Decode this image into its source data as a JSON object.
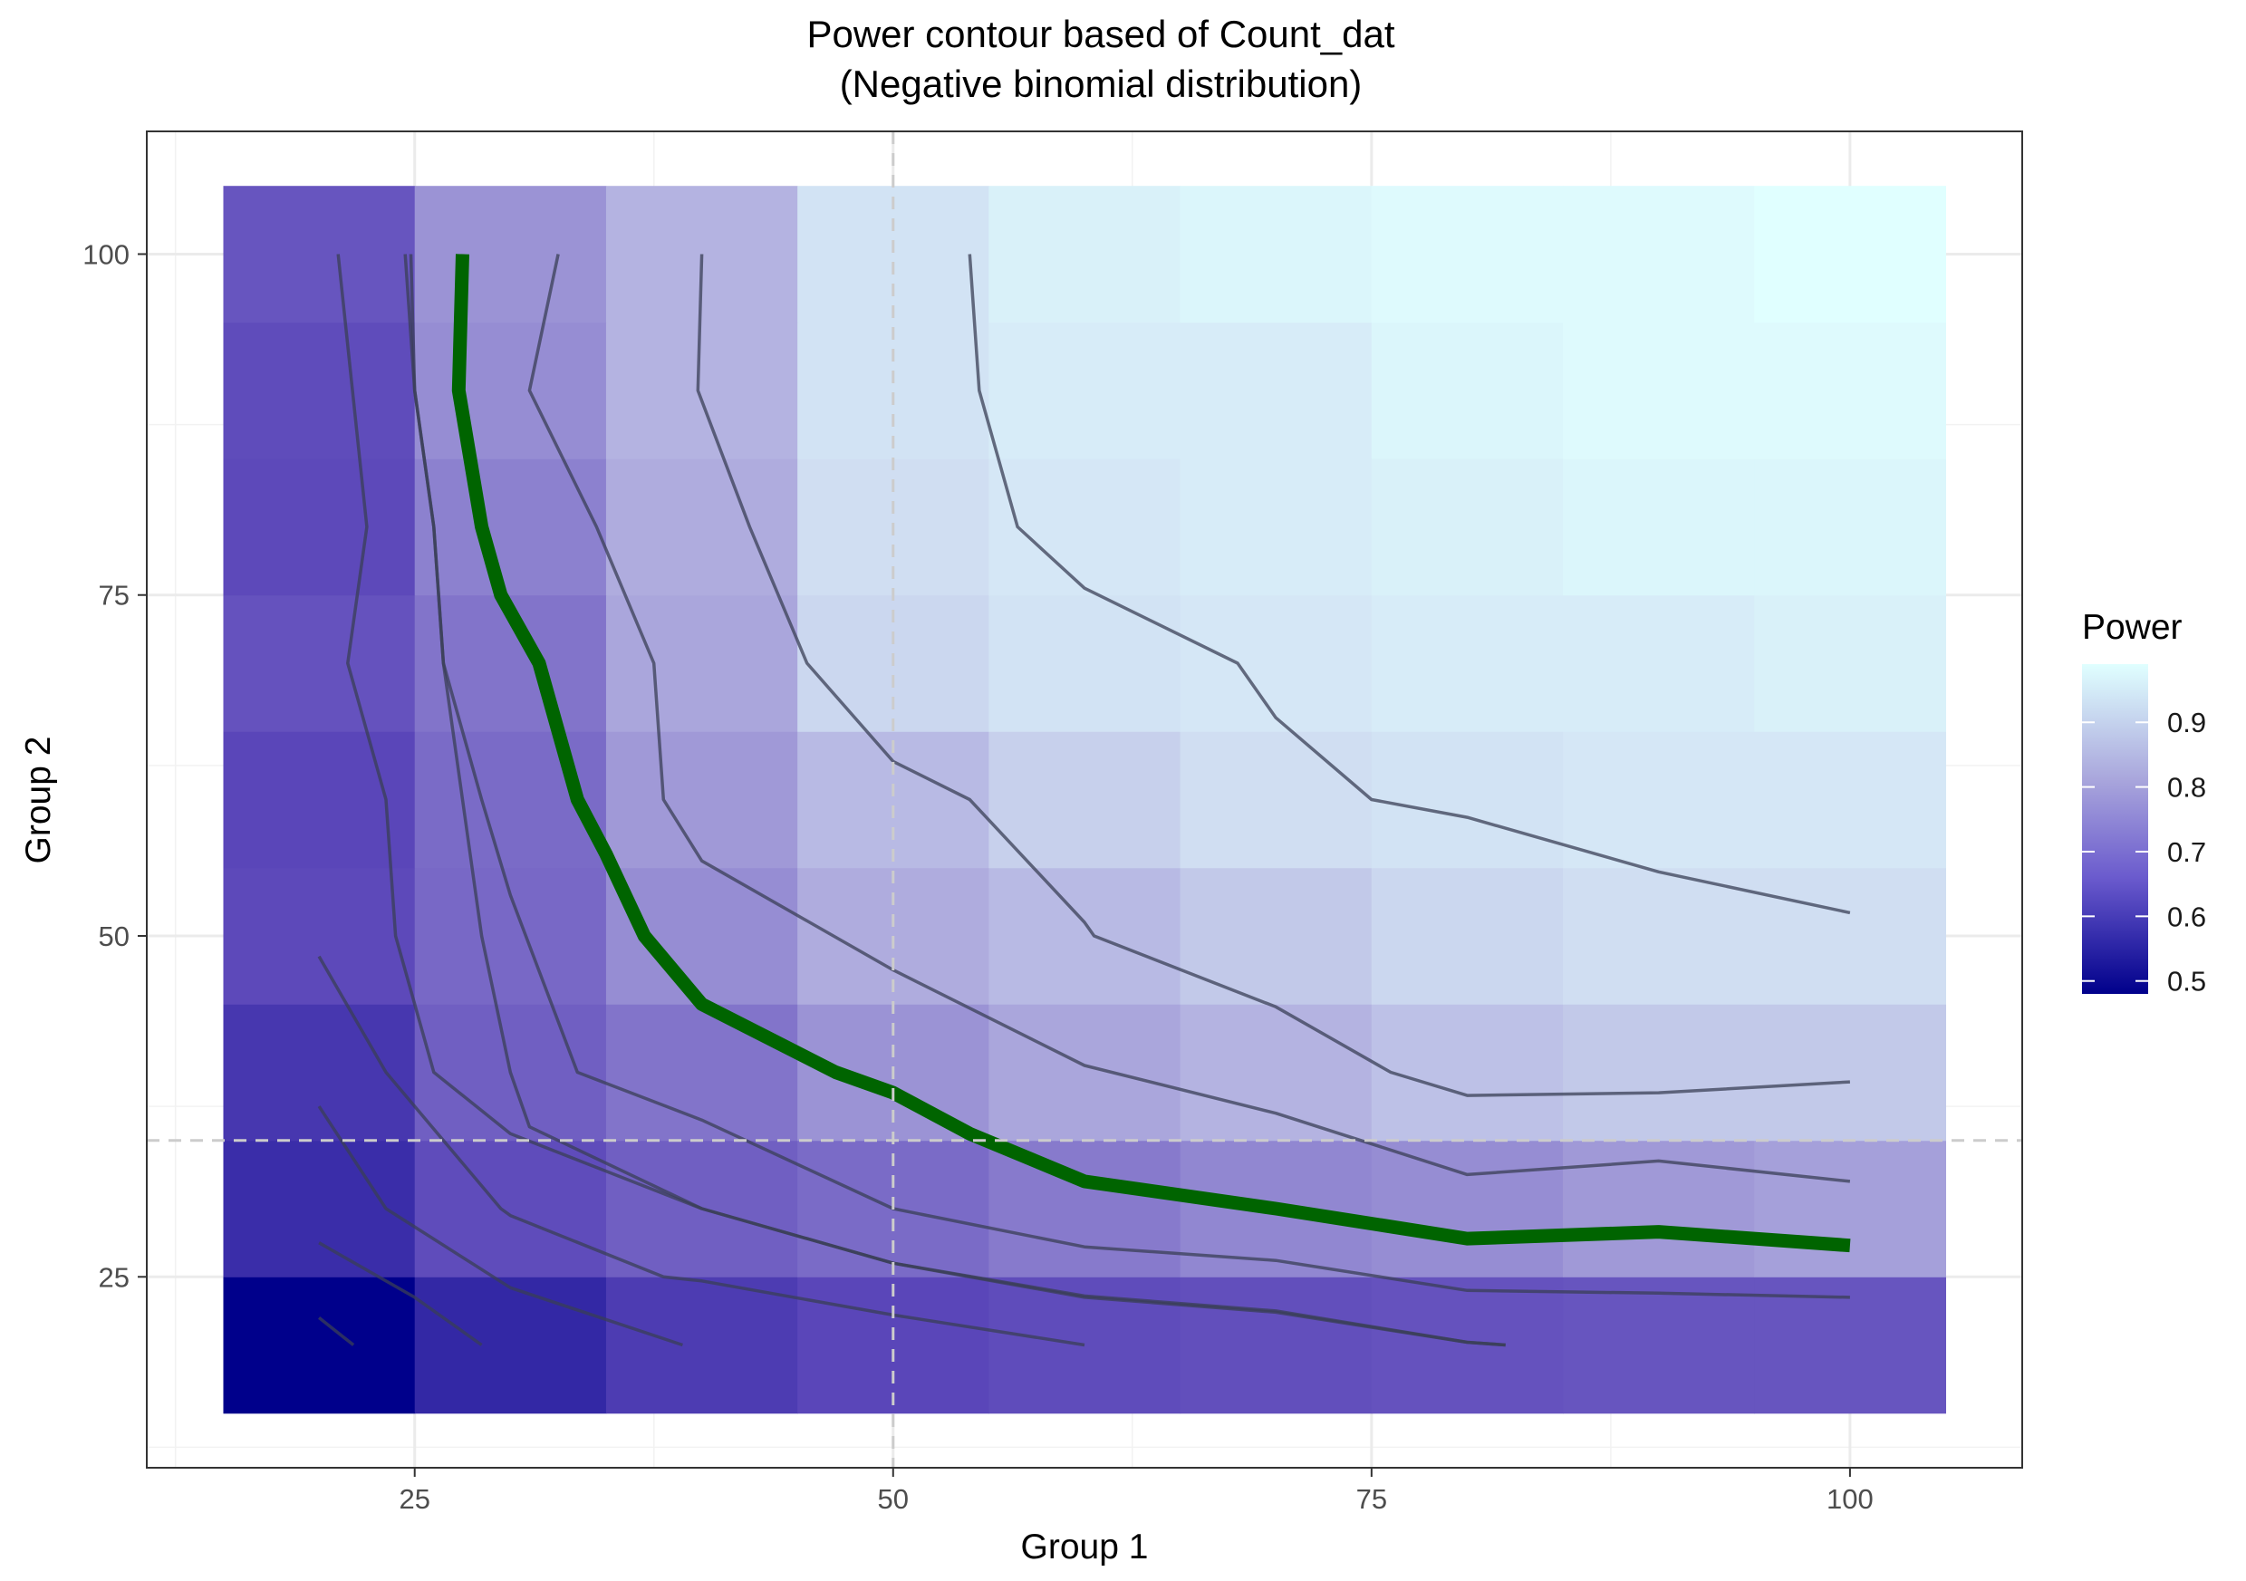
{
  "chart_data": {
    "type": "heatmap",
    "title_line1": "Power contour based of Count_dat",
    "title_line2": "(Negative binomial distribution)",
    "xlabel": "Group 1",
    "ylabel": "Group 2",
    "xlim": [
      11,
      109
    ],
    "ylim": [
      11,
      109
    ],
    "x_ticks": [
      25,
      50,
      75,
      100
    ],
    "y_ticks": [
      25,
      50,
      75,
      100
    ],
    "grid": true,
    "legend": {
      "title": "Power",
      "position": "right",
      "ticks": [
        0.5,
        0.6,
        0.7,
        0.8,
        0.9
      ],
      "range": [
        0.48,
        0.99
      ],
      "colors": [
        "#00008b",
        "#e0ffff"
      ]
    },
    "x_levels": [
      20,
      30,
      40,
      50,
      60,
      70,
      80,
      90,
      100
    ],
    "y_levels": [
      20,
      30,
      40,
      50,
      60,
      70,
      80,
      90,
      100
    ],
    "power_grid": [
      [
        0.48,
        0.56,
        0.6,
        0.62,
        0.64,
        0.65,
        0.66,
        0.67,
        0.67
      ],
      [
        0.57,
        0.64,
        0.7,
        0.74,
        0.77,
        0.79,
        0.8,
        0.82,
        0.83
      ],
      [
        0.59,
        0.7,
        0.76,
        0.81,
        0.84,
        0.86,
        0.88,
        0.89,
        0.89
      ],
      [
        0.63,
        0.73,
        0.8,
        0.85,
        0.87,
        0.89,
        0.91,
        0.92,
        0.92
      ],
      [
        0.62,
        0.74,
        0.82,
        0.87,
        0.9,
        0.92,
        0.93,
        0.94,
        0.94
      ],
      [
        0.66,
        0.76,
        0.84,
        0.91,
        0.93,
        0.94,
        0.95,
        0.95,
        0.96
      ],
      [
        0.63,
        0.78,
        0.85,
        0.92,
        0.94,
        0.95,
        0.96,
        0.97,
        0.97
      ],
      [
        0.64,
        0.8,
        0.86,
        0.93,
        0.95,
        0.95,
        0.97,
        0.98,
        0.98
      ],
      [
        0.67,
        0.81,
        0.86,
        0.93,
        0.96,
        0.97,
        0.98,
        0.98,
        0.99
      ]
    ],
    "reference_lines": {
      "x": 50,
      "y": 35
    },
    "contours": [
      {
        "emphasis": false,
        "points": [
          [
            20,
            22
          ],
          [
            21.8,
            20
          ]
        ]
      },
      {
        "emphasis": false,
        "points": [
          [
            20,
            27.5
          ],
          [
            25,
            23.5
          ],
          [
            28.5,
            20
          ]
        ]
      },
      {
        "emphasis": false,
        "points": [
          [
            20,
            37.5
          ],
          [
            23.5,
            30
          ],
          [
            30,
            24.2
          ],
          [
            39,
            20
          ]
        ]
      },
      {
        "emphasis": false,
        "points": [
          [
            20,
            48.5
          ],
          [
            23.5,
            40
          ],
          [
            29.5,
            30
          ],
          [
            30,
            29.5
          ],
          [
            38,
            25
          ],
          [
            40,
            24.7
          ],
          [
            50,
            22.2
          ],
          [
            60,
            20
          ]
        ]
      },
      {
        "emphasis": false,
        "points": [
          [
            24.8,
            100
          ],
          [
            25,
            90
          ],
          [
            26,
            80
          ],
          [
            26.5,
            70
          ],
          [
            27.5,
            60
          ],
          [
            28.5,
            50
          ],
          [
            30,
            40
          ],
          [
            31,
            36
          ],
          [
            40,
            30
          ],
          [
            50,
            26
          ],
          [
            60,
            23.6
          ],
          [
            70,
            22.5
          ],
          [
            80,
            20.2
          ],
          [
            82,
            20
          ]
        ]
      },
      {
        "emphasis": false,
        "points": [
          [
            21,
            100
          ],
          [
            22.5,
            80
          ],
          [
            21.5,
            70
          ],
          [
            23.5,
            60
          ],
          [
            24,
            50
          ],
          [
            26,
            40
          ],
          [
            30,
            35.5
          ],
          [
            40,
            30
          ],
          [
            50,
            26
          ],
          [
            60,
            23.5
          ],
          [
            70,
            22.4
          ],
          [
            80,
            20.2
          ],
          [
            82,
            20
          ]
        ]
      },
      {
        "emphasis": false,
        "points": [
          [
            24.5,
            100
          ],
          [
            25,
            90
          ],
          [
            26,
            80
          ],
          [
            26.5,
            70
          ],
          [
            28.5,
            60
          ],
          [
            30,
            53
          ],
          [
            33.5,
            40
          ],
          [
            40,
            36.5
          ],
          [
            50,
            30
          ],
          [
            60,
            27.2
          ],
          [
            70,
            26.2
          ],
          [
            80,
            24
          ],
          [
            90,
            23.8
          ],
          [
            100,
            23.5
          ]
        ]
      },
      {
        "emphasis": true,
        "points": [
          [
            27.5,
            100
          ],
          [
            27.3,
            90
          ],
          [
            28.5,
            80
          ],
          [
            29.5,
            75
          ],
          [
            31.5,
            70
          ],
          [
            33.5,
            60
          ],
          [
            35,
            56
          ],
          [
            37,
            50
          ],
          [
            40,
            45
          ],
          [
            47,
            40
          ],
          [
            50,
            38.5
          ],
          [
            54,
            35.5
          ],
          [
            60,
            32
          ],
          [
            70,
            30
          ],
          [
            80,
            27.8
          ],
          [
            90,
            28.3
          ],
          [
            100,
            27.3
          ]
        ]
      },
      {
        "emphasis": false,
        "points": [
          [
            32.5,
            100
          ],
          [
            31,
            90
          ],
          [
            34.5,
            80
          ],
          [
            37.5,
            70
          ],
          [
            38,
            60
          ],
          [
            40,
            55.5
          ],
          [
            50,
            47.5
          ],
          [
            60,
            40.5
          ],
          [
            70,
            37
          ],
          [
            80,
            32.5
          ],
          [
            90,
            33.5
          ],
          [
            100,
            32
          ]
        ]
      },
      {
        "emphasis": false,
        "points": [
          [
            40,
            100
          ],
          [
            39.8,
            90
          ],
          [
            42.5,
            80
          ],
          [
            45.5,
            70
          ],
          [
            50,
            62.8
          ],
          [
            54,
            60
          ],
          [
            60,
            51
          ],
          [
            60.5,
            50
          ],
          [
            70,
            44.8
          ],
          [
            76,
            40
          ],
          [
            80,
            38.3
          ],
          [
            90,
            38.5
          ],
          [
            100,
            39.3
          ]
        ]
      },
      {
        "emphasis": false,
        "points": [
          [
            54,
            100
          ],
          [
            54.5,
            90
          ],
          [
            56.5,
            80
          ],
          [
            60,
            75.5
          ],
          [
            68,
            70
          ],
          [
            70,
            66
          ],
          [
            75,
            60
          ],
          [
            80,
            58.7
          ],
          [
            90,
            54.7
          ],
          [
            100,
            51.7
          ]
        ]
      }
    ]
  }
}
